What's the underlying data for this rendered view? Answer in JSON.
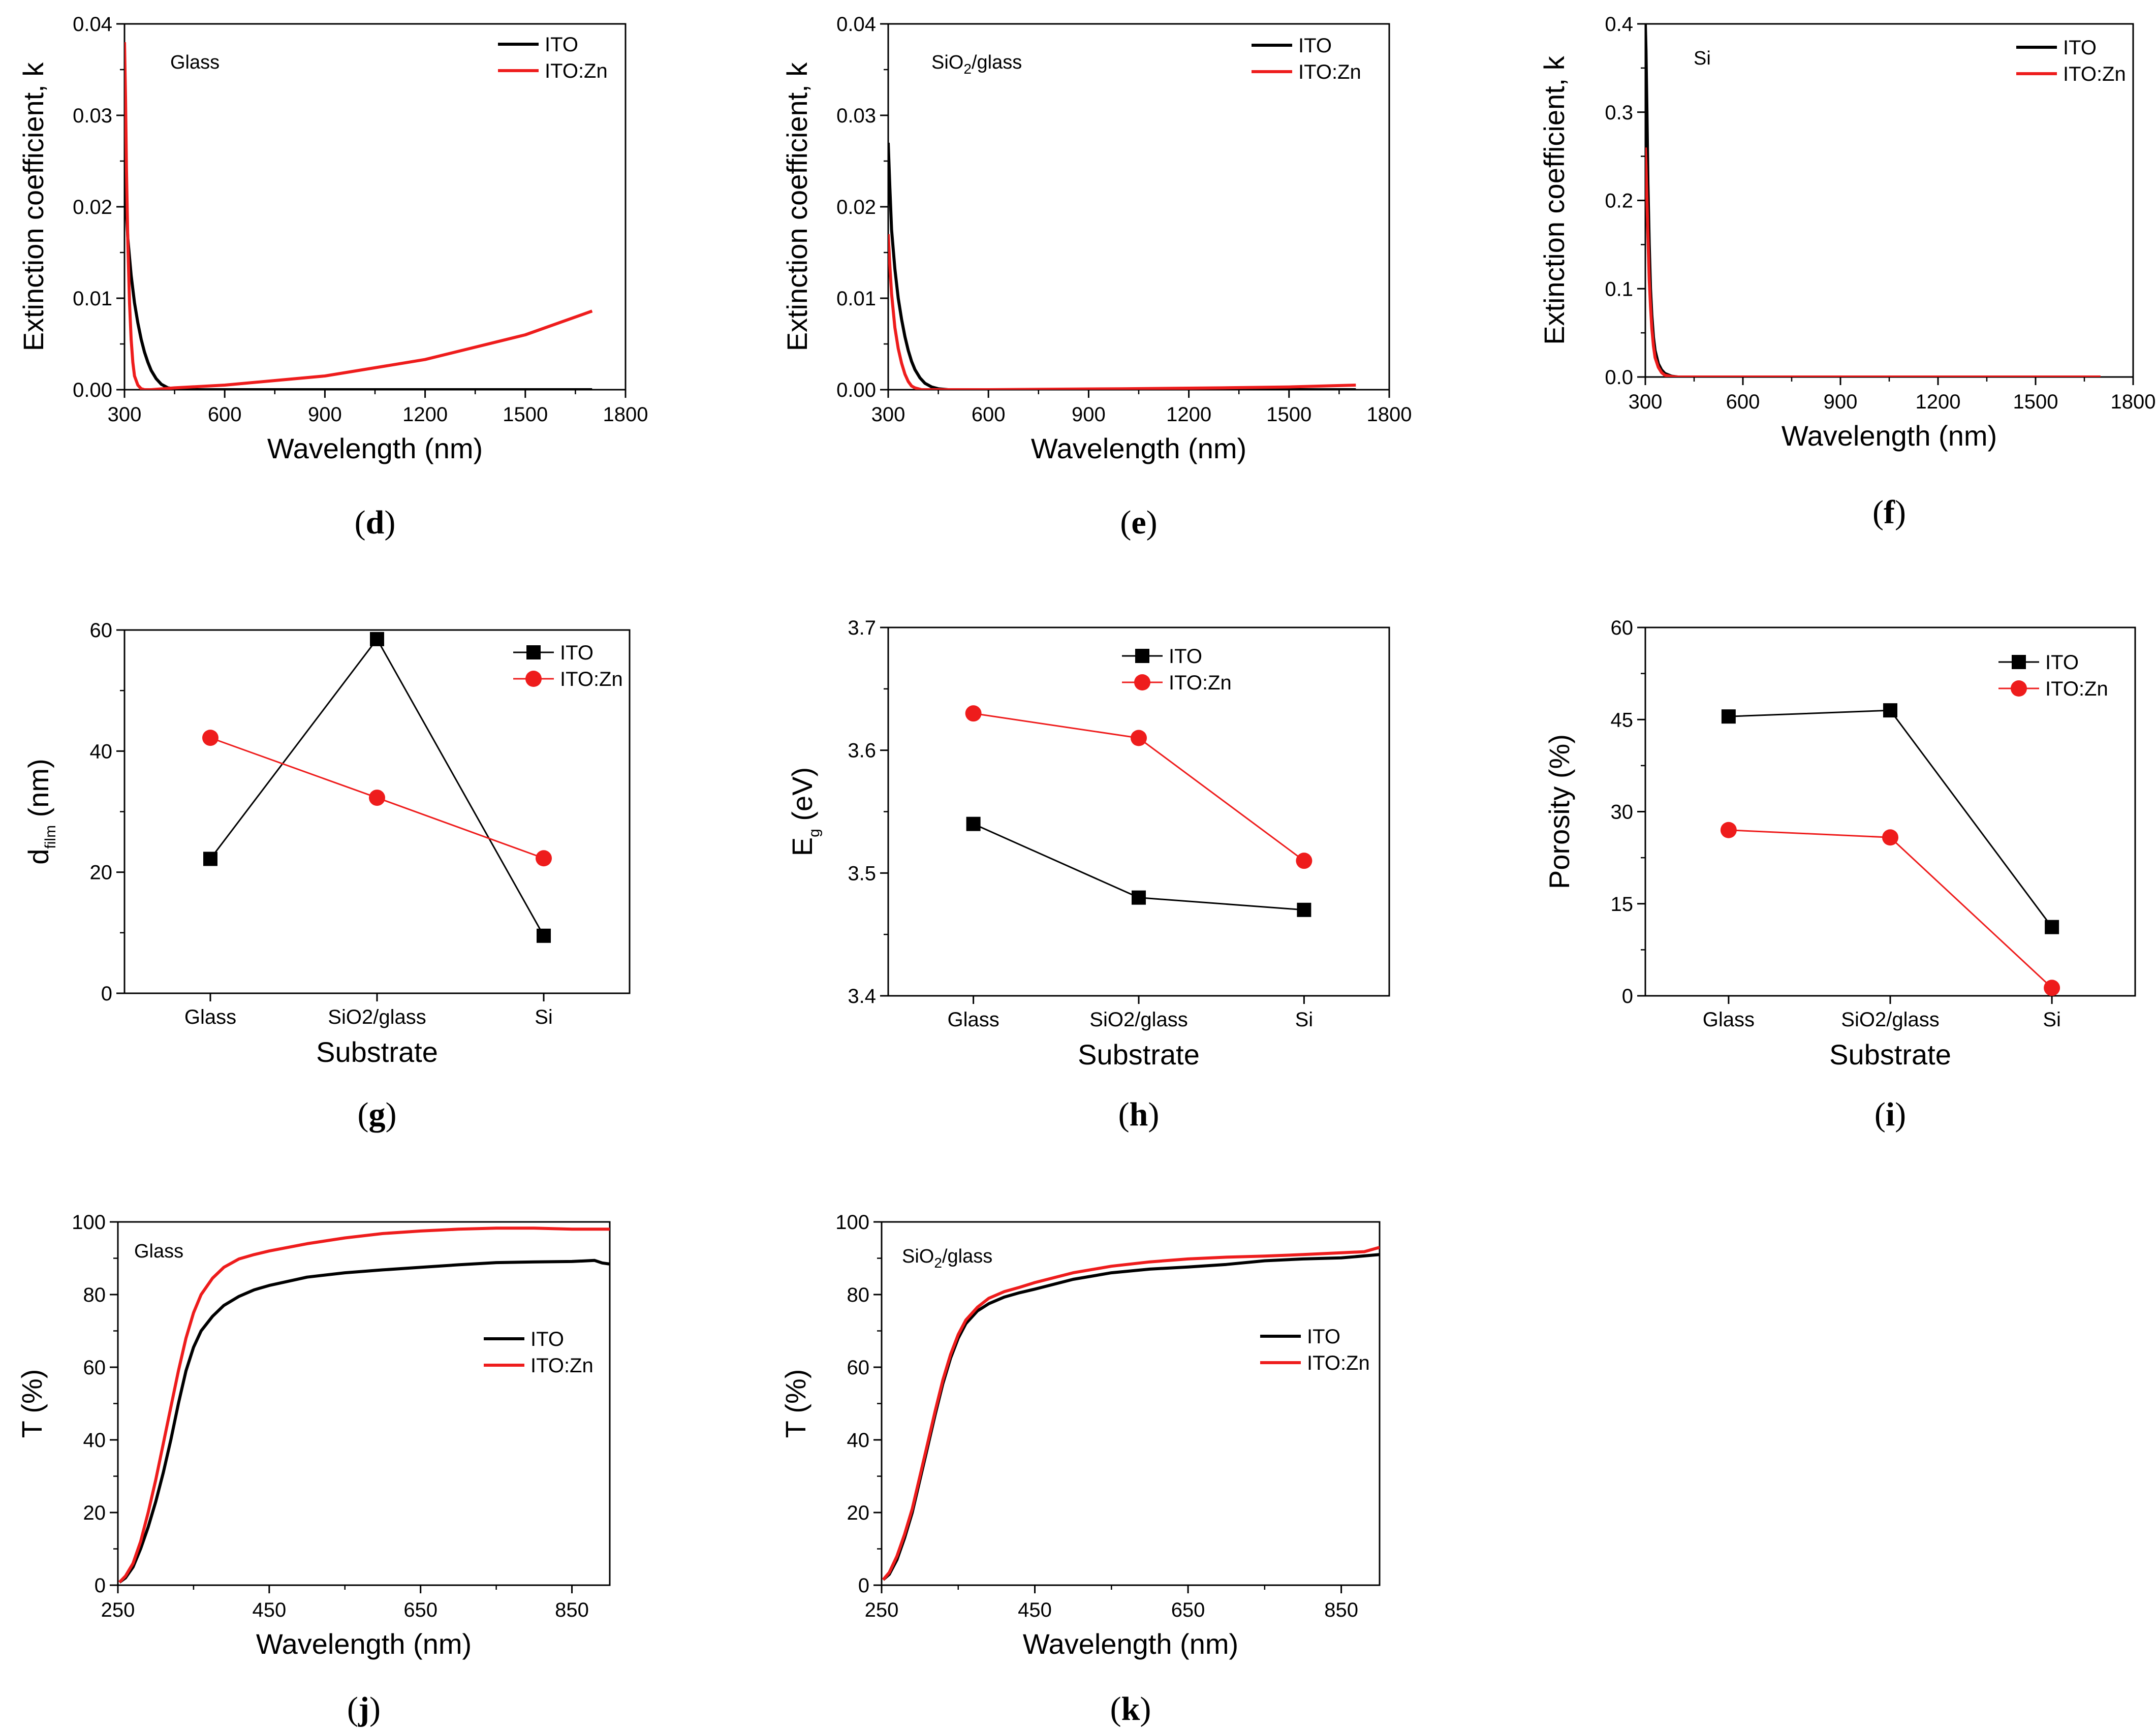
{
  "figure": {
    "panels": [
      {
        "id": "d",
        "kind": "k",
        "letter": "d",
        "note": "Glass",
        "note_sub": "",
        "title": "",
        "xlabel": "Wavelength (nm)",
        "ylabel": "Extinction coefficient, k",
        "xlim": [
          300,
          1800
        ],
        "ylim": [
          0,
          0.04
        ],
        "xticks": [
          300,
          600,
          900,
          1200,
          1500,
          1800
        ],
        "yticks": [
          0.0,
          0.01,
          0.02,
          0.03,
          0.04
        ],
        "ytick_labels": [
          "0.00",
          "0.01",
          "0.02",
          "0.03",
          "0.04"
        ]
      },
      {
        "id": "e",
        "kind": "k",
        "letter": "e",
        "note": "SiO2/glass",
        "note_sub": "2",
        "title": "",
        "xlabel": "Wavelength (nm)",
        "ylabel": "Extinction coefficient, k",
        "xlim": [
          300,
          1800
        ],
        "ylim": [
          0,
          0.04
        ],
        "xticks": [
          300,
          600,
          900,
          1200,
          1500,
          1800
        ],
        "yticks": [
          0.0,
          0.01,
          0.02,
          0.03,
          0.04
        ],
        "ytick_labels": [
          "0.00",
          "0.01",
          "0.02",
          "0.03",
          "0.04"
        ]
      },
      {
        "id": "f",
        "kind": "k",
        "letter": "f",
        "note": "Si",
        "note_sub": "",
        "title": "",
        "xlabel": "Wavelength (nm)",
        "ylabel": "Extinction coefficient, k",
        "xlim": [
          300,
          1800
        ],
        "ylim": [
          0,
          0.4
        ],
        "xticks": [
          300,
          600,
          900,
          1200,
          1500,
          1800
        ],
        "yticks": [
          0.0,
          0.1,
          0.2,
          0.3,
          0.4
        ],
        "ytick_labels": [
          "0.0",
          "0.1",
          "0.2",
          "0.3",
          "0.4"
        ]
      },
      {
        "id": "g",
        "kind": "cat",
        "letter": "g",
        "note": "",
        "note_sub": "",
        "title": "",
        "xlabel": "Substrate",
        "ylabel": "d",
        "ylabel_sub": "film",
        "ylabel_tail": " (nm)",
        "ylim": [
          0,
          60
        ],
        "yticks": [
          0,
          20,
          40,
          60
        ],
        "ytick_labels": [
          "0",
          "20",
          "40",
          "60"
        ]
      },
      {
        "id": "h",
        "kind": "cat",
        "letter": "h",
        "note": "",
        "note_sub": "",
        "title": "",
        "xlabel": "Substrate",
        "ylabel": "E",
        "ylabel_sub": "g",
        "ylabel_tail": " (eV)",
        "ylim": [
          3.4,
          3.7
        ],
        "yticks": [
          3.4,
          3.5,
          3.6,
          3.7
        ],
        "ytick_labels": [
          "3.4",
          "3.5",
          "3.6",
          "3.7"
        ]
      },
      {
        "id": "i",
        "kind": "cat",
        "letter": "i",
        "note": "",
        "note_sub": "",
        "title": "",
        "xlabel": "Substrate",
        "ylabel": "Porosity (%)",
        "ylabel_sub": "",
        "ylabel_tail": "",
        "ylim": [
          0,
          60
        ],
        "yticks": [
          0,
          15,
          30,
          45,
          60
        ],
        "ytick_labels": [
          "0",
          "15",
          "30",
          "45",
          "60"
        ]
      },
      {
        "id": "j",
        "kind": "T",
        "letter": "j",
        "note": "Glass",
        "note_sub": "",
        "title": "",
        "xlabel": "Wavelength (nm)",
        "ylabel": "T (%)",
        "xlim": [
          250,
          900
        ],
        "ylim": [
          0,
          100
        ],
        "xticks": [
          250,
          450,
          650,
          850
        ],
        "yticks": [
          0,
          20,
          40,
          60,
          80,
          100
        ],
        "ytick_labels": [
          "0",
          "20",
          "40",
          "60",
          "80",
          "100"
        ]
      },
      {
        "id": "k",
        "kind": "T",
        "letter": "k",
        "note": "SiO2/glass",
        "note_sub": "2",
        "title": "",
        "xlabel": "Wavelength (nm)",
        "ylabel": "T (%)",
        "xlim": [
          250,
          900
        ],
        "ylim": [
          0,
          100
        ],
        "xticks": [
          250,
          450,
          650,
          850
        ],
        "yticks": [
          0,
          20,
          40,
          60,
          80,
          100
        ],
        "ytick_labels": [
          "0",
          "20",
          "40",
          "60",
          "80",
          "100"
        ]
      }
    ],
    "legend": [
      "ITO",
      "ITO:Zn"
    ],
    "colors": {
      "ITO": "#000000",
      "ITO:Zn": "#ee1c1c"
    }
  },
  "chart_data": [
    {
      "panel": "d",
      "type": "line",
      "title": "Glass",
      "xlabel": "Wavelength (nm)",
      "ylabel": "Extinction coefficient, k",
      "xlim": [
        300,
        1800
      ],
      "ylim": [
        0,
        0.04
      ],
      "series": [
        {
          "name": "ITO",
          "x": [
            300,
            305,
            310,
            320,
            330,
            340,
            350,
            360,
            370,
            380,
            395,
            410,
            430,
            450,
            500,
            800,
            1200,
            1700
          ],
          "y": [
            0.025,
            0.02,
            0.0165,
            0.0125,
            0.0095,
            0.0073,
            0.0055,
            0.0041,
            0.003,
            0.0021,
            0.0012,
            0.0006,
            0.0002,
            0.0001,
            0.0,
            0.0,
            0.0,
            0.0
          ]
        },
        {
          "name": "ITO:Zn",
          "x": [
            300,
            303,
            306,
            310,
            315,
            320,
            325,
            330,
            340,
            350,
            360,
            380,
            450,
            600,
            900,
            1200,
            1500,
            1700
          ],
          "y": [
            0.038,
            0.032,
            0.024,
            0.016,
            0.0095,
            0.0055,
            0.003,
            0.0015,
            0.0005,
            0.0001,
            0.0,
            0.0,
            0.0002,
            0.0005,
            0.0015,
            0.0033,
            0.006,
            0.0086
          ]
        }
      ]
    },
    {
      "panel": "e",
      "type": "line",
      "title": "SiO2/glass",
      "xlabel": "Wavelength (nm)",
      "ylabel": "Extinction coefficient, k",
      "xlim": [
        300,
        1800
      ],
      "ylim": [
        0,
        0.04
      ],
      "series": [
        {
          "name": "ITO",
          "x": [
            300,
            305,
            310,
            320,
            330,
            340,
            350,
            360,
            370,
            380,
            395,
            410,
            430,
            450,
            480,
            600,
            1200,
            1700
          ],
          "y": [
            0.027,
            0.022,
            0.0175,
            0.0132,
            0.01,
            0.0077,
            0.0058,
            0.0043,
            0.0031,
            0.0022,
            0.0013,
            0.0007,
            0.0003,
            0.0001,
            0.0,
            0.0,
            0.0,
            0.0
          ]
        },
        {
          "name": "ITO:Zn",
          "x": [
            300,
            305,
            310,
            320,
            330,
            340,
            350,
            360,
            370,
            380,
            400,
            450,
            600,
            1000,
            1300,
            1500,
            1700
          ],
          "y": [
            0.017,
            0.0135,
            0.0105,
            0.0068,
            0.0045,
            0.0029,
            0.0017,
            0.0009,
            0.0004,
            0.0002,
            0.0,
            0.0,
            0.0,
            0.0001,
            0.0002,
            0.0003,
            0.0005
          ]
        }
      ]
    },
    {
      "panel": "f",
      "type": "line",
      "title": "Si",
      "xlabel": "Wavelength (nm)",
      "ylabel": "Extinction coefficient, k",
      "xlim": [
        300,
        1800
      ],
      "ylim": [
        0,
        0.4
      ],
      "series": [
        {
          "name": "ITO",
          "x": [
            300,
            302,
            305,
            308,
            312,
            316,
            320,
            325,
            330,
            340,
            350,
            360,
            380,
            400,
            1700
          ],
          "y": [
            0.4,
            0.37,
            0.3,
            0.22,
            0.15,
            0.1,
            0.07,
            0.045,
            0.03,
            0.015,
            0.008,
            0.004,
            0.001,
            0.0,
            0.0
          ]
        },
        {
          "name": "ITO:Zn",
          "x": [
            300,
            302,
            305,
            308,
            312,
            316,
            320,
            325,
            330,
            340,
            350,
            360,
            380,
            400,
            1700
          ],
          "y": [
            0.26,
            0.24,
            0.2,
            0.16,
            0.11,
            0.08,
            0.055,
            0.035,
            0.022,
            0.011,
            0.005,
            0.002,
            0.0005,
            0.0,
            0.0
          ]
        }
      ]
    },
    {
      "panel": "g",
      "type": "line",
      "title": "",
      "xlabel": "Substrate",
      "ylabel": "d film (nm)",
      "categories": [
        "Glass",
        "SiO2/glass",
        "Si"
      ],
      "ylim": [
        0,
        60
      ],
      "series": [
        {
          "name": "ITO",
          "marker": "square",
          "values": [
            22.2,
            58.5,
            9.5
          ]
        },
        {
          "name": "ITO:Zn",
          "marker": "circle",
          "values": [
            42.2,
            32.3,
            22.3
          ]
        }
      ]
    },
    {
      "panel": "h",
      "type": "line",
      "title": "",
      "xlabel": "Substrate",
      "ylabel": "Eg (eV)",
      "categories": [
        "Glass",
        "SiO2/glass",
        "Si"
      ],
      "ylim": [
        3.4,
        3.7
      ],
      "series": [
        {
          "name": "ITO",
          "marker": "square",
          "values": [
            3.54,
            3.48,
            3.47
          ]
        },
        {
          "name": "ITO:Zn",
          "marker": "circle",
          "values": [
            3.63,
            3.61,
            3.51
          ]
        }
      ]
    },
    {
      "panel": "i",
      "type": "line",
      "title": "",
      "xlabel": "Substrate",
      "ylabel": "Porosity (%)",
      "categories": [
        "Glass",
        "SiO2/glass",
        "Si"
      ],
      "ylim": [
        0,
        60
      ],
      "series": [
        {
          "name": "ITO",
          "marker": "square",
          "values": [
            45.5,
            46.5,
            11.2
          ]
        },
        {
          "name": "ITO:Zn",
          "marker": "circle",
          "values": [
            27.0,
            25.8,
            1.3
          ]
        }
      ]
    },
    {
      "panel": "j",
      "type": "line",
      "title": "Glass",
      "xlabel": "Wavelength (nm)",
      "ylabel": "T (%)",
      "xlim": [
        250,
        900
      ],
      "ylim": [
        0,
        100
      ],
      "series": [
        {
          "name": "ITO",
          "x": [
            252,
            260,
            270,
            280,
            290,
            300,
            310,
            320,
            330,
            340,
            350,
            360,
            375,
            390,
            410,
            430,
            450,
            500,
            550,
            600,
            650,
            700,
            750,
            800,
            850,
            880,
            890,
            900
          ],
          "y": [
            0.8,
            2.0,
            5.0,
            10.0,
            16.0,
            23.0,
            31.0,
            40.0,
            50.0,
            59.0,
            65.5,
            70.0,
            74.0,
            77.0,
            79.5,
            81.3,
            82.5,
            84.8,
            86.0,
            86.8,
            87.5,
            88.2,
            88.8,
            89.0,
            89.1,
            89.4,
            88.7,
            88.4
          ]
        },
        {
          "name": "ITO:Zn",
          "x": [
            252,
            260,
            270,
            280,
            290,
            300,
            310,
            320,
            330,
            340,
            350,
            360,
            375,
            390,
            410,
            430,
            450,
            500,
            550,
            600,
            650,
            700,
            750,
            800,
            850,
            900
          ],
          "y": [
            0.8,
            2.5,
            6.0,
            12.0,
            20.0,
            29.0,
            39.0,
            49.0,
            59.0,
            68.0,
            75.0,
            80.0,
            84.5,
            87.5,
            89.8,
            91.0,
            92.0,
            94.0,
            95.6,
            96.8,
            97.5,
            98.0,
            98.3,
            98.3,
            98.0,
            98.0
          ]
        }
      ]
    },
    {
      "panel": "k",
      "type": "line",
      "title": "SiO2/glass",
      "xlabel": "Wavelength (nm)",
      "ylabel": "T (%)",
      "xlim": [
        250,
        900
      ],
      "ylim": [
        0,
        100
      ],
      "series": [
        {
          "name": "ITO",
          "x": [
            252,
            260,
            270,
            280,
            290,
            300,
            310,
            320,
            330,
            340,
            350,
            360,
            375,
            390,
            410,
            430,
            450,
            500,
            550,
            600,
            650,
            700,
            750,
            800,
            850,
            900
          ],
          "y": [
            1.5,
            3.0,
            7.0,
            13.0,
            20.0,
            29.0,
            38.0,
            47.0,
            55.5,
            62.5,
            68.0,
            72.0,
            75.5,
            77.5,
            79.3,
            80.5,
            81.5,
            84.2,
            86.0,
            87.0,
            87.6,
            88.3,
            89.3,
            89.8,
            90.1,
            91.0
          ]
        },
        {
          "name": "ITO:Zn",
          "x": [
            252,
            260,
            270,
            280,
            290,
            300,
            310,
            320,
            330,
            340,
            350,
            360,
            375,
            390,
            410,
            430,
            450,
            500,
            550,
            600,
            650,
            700,
            750,
            800,
            850,
            880,
            900
          ],
          "y": [
            1.5,
            3.5,
            8.0,
            14.0,
            21.0,
            30.0,
            39.0,
            48.0,
            56.5,
            63.5,
            69.0,
            73.0,
            76.5,
            79.0,
            80.8,
            82.0,
            83.3,
            86.0,
            87.8,
            89.0,
            89.8,
            90.3,
            90.6,
            91.0,
            91.5,
            91.8,
            93.0
          ]
        }
      ]
    }
  ]
}
